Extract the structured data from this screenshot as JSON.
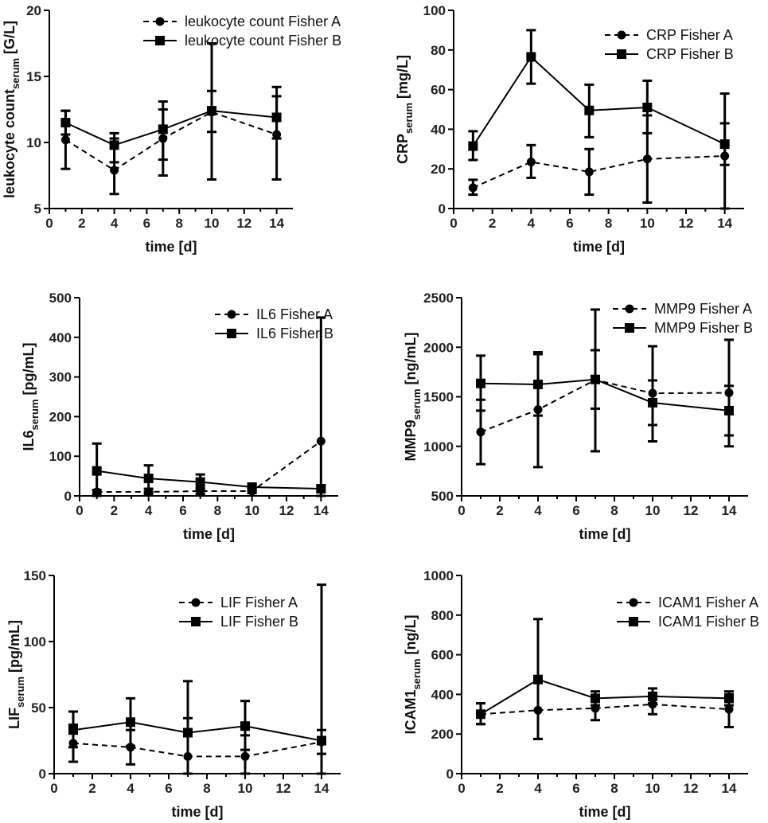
{
  "chart_data": [
    {
      "type": "line",
      "xlabel": "time [d]",
      "ylabel_main": "leukocyte count",
      "ylabel_sub": "serum",
      "ylabel_suffix": " [G/L]",
      "xlim": [
        0,
        15
      ],
      "xticks": [
        0,
        2,
        4,
        6,
        8,
        10,
        12,
        14
      ],
      "ylim": [
        5,
        20
      ],
      "yticks": [
        5,
        10,
        15,
        20
      ],
      "legend": "top-right",
      "x": [
        1,
        4,
        7,
        10,
        14
      ],
      "series": [
        {
          "name": "leukocyte count Fisher A",
          "marker": "circle",
          "line": "dashed",
          "values": [
            10.2,
            7.9,
            10.3,
            12.3,
            10.6
          ],
          "err_low": [
            8.0,
            6.1,
            7.5,
            7.2,
            7.2
          ],
          "err_high": [
            12.4,
            10.3,
            13.1,
            17.5,
            14.2
          ]
        },
        {
          "name": "leukocyte count Fisher B",
          "marker": "square",
          "line": "solid",
          "values": [
            11.5,
            9.8,
            11.0,
            12.4,
            11.9
          ],
          "err_low": [
            10.6,
            8.5,
            8.7,
            10.8,
            10.3
          ],
          "err_high": [
            12.4,
            10.7,
            12.5,
            13.9,
            13.5
          ]
        }
      ]
    },
    {
      "type": "line",
      "xlabel": "time [d]",
      "ylabel_main": "CRP",
      "ylabel_sub": "serum",
      "ylabel_suffix": " [mg/L]",
      "xlim": [
        0,
        15
      ],
      "xticks": [
        0,
        2,
        4,
        6,
        8,
        10,
        12,
        14
      ],
      "ylim": [
        0,
        100
      ],
      "yticks": [
        0,
        20,
        40,
        60,
        80,
        100
      ],
      "legend": "top-right",
      "x": [
        1,
        4,
        7,
        10,
        14
      ],
      "series": [
        {
          "name": "CRP Fisher A",
          "marker": "circle",
          "line": "dashed",
          "values": [
            10.5,
            23.5,
            18.5,
            25.0,
            26.5
          ],
          "err_low": [
            7.0,
            15.5,
            7.0,
            3.0,
            0.0
          ],
          "err_high": [
            14.5,
            32.0,
            30.0,
            47.0,
            58.0
          ]
        },
        {
          "name": "CRP Fisher B",
          "marker": "square",
          "line": "solid",
          "values": [
            31.5,
            76.5,
            49.5,
            51.0,
            32.5
          ],
          "err_low": [
            24.5,
            63.0,
            36.0,
            38.0,
            22.0
          ],
          "err_high": [
            39.0,
            90.0,
            62.5,
            64.5,
            43.0
          ]
        }
      ]
    },
    {
      "type": "line",
      "xlabel": "time [d]",
      "ylabel_main": "IL6",
      "ylabel_sub": "serum",
      "ylabel_suffix": " [pg/mL]",
      "xlim": [
        0,
        15
      ],
      "xticks": [
        0,
        2,
        4,
        6,
        8,
        10,
        12,
        14
      ],
      "ylim": [
        0,
        500
      ],
      "yticks": [
        0,
        100,
        200,
        300,
        400,
        500
      ],
      "legend": "top-right",
      "x": [
        1,
        4,
        7,
        10,
        14
      ],
      "series": [
        {
          "name": "IL6 Fisher A",
          "marker": "circle",
          "line": "dashed",
          "values": [
            10,
            10,
            12,
            12,
            138
          ],
          "err_low": [
            5,
            4,
            5,
            7,
            0
          ],
          "err_high": [
            15,
            18,
            20,
            17,
            450
          ]
        },
        {
          "name": "IL6 Fisher B",
          "marker": "square",
          "line": "solid",
          "values": [
            63,
            44,
            35,
            22,
            18
          ],
          "err_low": [
            0,
            10,
            16,
            14,
            10
          ],
          "err_high": [
            132,
            77,
            54,
            30,
            26
          ]
        }
      ]
    },
    {
      "type": "line",
      "xlabel": "time [d]",
      "ylabel_main": "MMP9",
      "ylabel_sub": "serum",
      "ylabel_suffix": " [ng/mL]",
      "xlim": [
        0,
        15
      ],
      "xticks": [
        0,
        2,
        4,
        6,
        8,
        10,
        12,
        14
      ],
      "ylim": [
        500,
        2500
      ],
      "yticks": [
        500,
        1000,
        1500,
        2000,
        2500
      ],
      "legend": "top-right",
      "x": [
        1,
        4,
        7,
        10,
        14
      ],
      "series": [
        {
          "name": "MMP9 Fisher A",
          "marker": "circle",
          "line": "dashed",
          "values": [
            1145,
            1370,
            1670,
            1535,
            1540
          ],
          "err_low": [
            820,
            790,
            950,
            1050,
            1000
          ],
          "err_high": [
            1470,
            1950,
            2380,
            2010,
            2075
          ]
        },
        {
          "name": "MMP9 Fisher B",
          "marker": "square",
          "line": "solid",
          "values": [
            1635,
            1625,
            1675,
            1440,
            1360
          ],
          "err_low": [
            1360,
            1310,
            1380,
            1215,
            1110
          ],
          "err_high": [
            1915,
            1930,
            1970,
            1665,
            1610
          ]
        }
      ]
    },
    {
      "type": "line",
      "xlabel": "time [d]",
      "ylabel_main": "LIF",
      "ylabel_sub": "serum",
      "ylabel_suffix": " [pg/mL]",
      "xlim": [
        0,
        15
      ],
      "xticks": [
        0,
        2,
        4,
        6,
        8,
        10,
        12,
        14
      ],
      "ylim": [
        0,
        150
      ],
      "yticks": [
        0,
        50,
        100,
        150
      ],
      "legend": "top-right",
      "x": [
        1,
        4,
        7,
        10,
        14
      ],
      "series": [
        {
          "name": "LIF Fisher A",
          "marker": "circle",
          "line": "dashed",
          "values": [
            23,
            20,
            13,
            13,
            24
          ],
          "err_low": [
            9,
            7,
            0,
            0,
            15
          ],
          "err_high": [
            37,
            33,
            42,
            29,
            33
          ]
        },
        {
          "name": "LIF Fisher B",
          "marker": "square",
          "line": "solid",
          "values": [
            33,
            39,
            31,
            36,
            25
          ],
          "err_low": [
            20,
            21,
            0,
            18,
            0
          ],
          "err_high": [
            47,
            57,
            70,
            55,
            143
          ]
        }
      ]
    },
    {
      "type": "line",
      "xlabel": "time [d]",
      "ylabel_main": "ICAM1",
      "ylabel_sub": "serum",
      "ylabel_suffix": " [ng/L]",
      "xlim": [
        0,
        15
      ],
      "xticks": [
        0,
        2,
        4,
        6,
        8,
        10,
        12,
        14
      ],
      "ylim": [
        0,
        1000
      ],
      "yticks": [
        0,
        200,
        400,
        600,
        800,
        1000
      ],
      "legend": "top-right",
      "x": [
        1,
        4,
        7,
        10,
        14
      ],
      "series": [
        {
          "name": "ICAM1 Fisher A",
          "marker": "circle",
          "line": "dashed",
          "values": [
            300,
            320,
            330,
            350,
            325
          ],
          "err_low": [
            250,
            175,
            270,
            300,
            235
          ],
          "err_high": [
            355,
            470,
            390,
            400,
            400
          ]
        },
        {
          "name": "ICAM1 Fisher B",
          "marker": "square",
          "line": "solid",
          "values": [
            300,
            475,
            380,
            390,
            380
          ],
          "err_low": [
            250,
            175,
            345,
            355,
            345
          ],
          "err_high": [
            355,
            780,
            415,
            430,
            415
          ]
        }
      ]
    }
  ]
}
